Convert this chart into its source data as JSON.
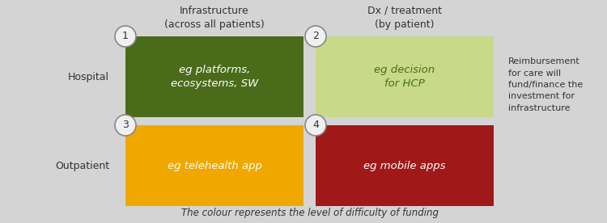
{
  "bg_color": "#d4d4d4",
  "col_header_1": "Infrastructure\n(across all patients)",
  "col_header_2": "Dx / treatment\n(by patient)",
  "row_header_1": "Hospital",
  "row_header_2": "Outpatient",
  "box1_color": "#4a6b1a",
  "box2_color": "#c8d98a",
  "box3_color": "#f0a800",
  "box4_color": "#a01818",
  "box1_text": "eg platforms,\necosystems, SW",
  "box2_text": "eg decision\nfor HCP",
  "box3_text": "eg telehealth app",
  "box4_text": "eg mobile apps",
  "box1_label": "1",
  "box2_label": "2",
  "box3_label": "3",
  "box4_label": "4",
  "box1_text_color": "#ffffff",
  "box2_text_color": "#4a6b1a",
  "box3_text_color": "#ffffff",
  "box4_text_color": "#ffffff",
  "footer_text": "The colour represents the level of difficulty of funding",
  "side_text": "Reimbursement\nfor care will\nfund/finance the\ninvestment for\ninfrastructure",
  "circle_bg": "#f0f0f0",
  "circle_edge": "#888888"
}
